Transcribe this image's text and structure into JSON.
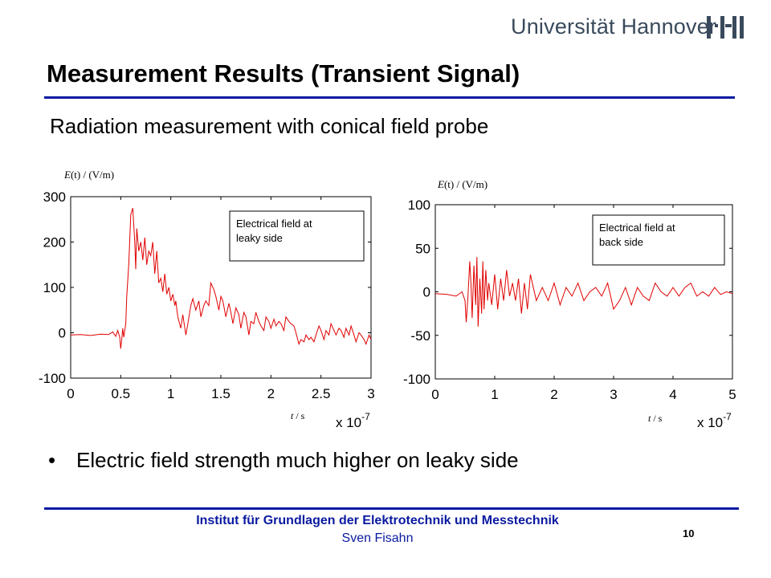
{
  "header": {
    "logo_text": "Universität Hannover",
    "logo_mark": "luh-logo-icon"
  },
  "slide": {
    "title": "Measurement Results (Transient Signal)",
    "subtitle": "Radiation measurement with conical field probe",
    "bullets": [
      {
        "marker": "•",
        "text": "Electric field strength much higher on leaky side"
      }
    ]
  },
  "footer": {
    "institute": "Institut für Grundlagen der Elektrotechnik und Messtechnik",
    "author": "Sven Fisahn",
    "page_number": "10"
  },
  "colors": {
    "rule": "#0a1aa0",
    "signal": "#e00000",
    "footer_text": "#0a1aa0"
  },
  "chart_data": [
    {
      "type": "line",
      "ylabel_var": "E",
      "ylabel_rest": "(t) / (V/m)",
      "xlabel_var": "t",
      "xlabel_rest": " / s",
      "x_multiplier_base": "x 10",
      "x_multiplier_exp": "-7",
      "xlim": [
        0,
        3
      ],
      "ylim": [
        -100,
        300
      ],
      "xticks": [
        "0",
        "0.5",
        "1",
        "1.5",
        "2",
        "2.5",
        "3"
      ],
      "xtick_values": [
        0,
        0.5,
        1,
        1.5,
        2,
        2.5,
        3
      ],
      "yticks": [
        "-100",
        "0",
        "100",
        "200",
        "300"
      ],
      "ytick_values": [
        -100,
        0,
        100,
        200,
        300
      ],
      "legend": [
        "Electrical field at",
        "leaky side"
      ],
      "color": "#e00000",
      "series": [
        {
          "x": [
            0,
            0.1,
            0.2,
            0.3,
            0.38,
            0.42,
            0.45,
            0.47,
            0.49,
            0.5,
            0.51,
            0.52,
            0.53,
            0.55,
            0.56,
            0.58,
            0.6,
            0.62,
            0.64,
            0.65,
            0.66,
            0.68,
            0.7,
            0.72,
            0.74,
            0.76,
            0.78,
            0.8,
            0.82,
            0.84,
            0.86,
            0.88,
            0.9,
            0.92,
            0.94,
            0.96,
            0.98,
            1.0,
            1.02,
            1.04,
            1.05,
            1.07,
            1.1,
            1.12,
            1.15,
            1.17,
            1.2,
            1.22,
            1.25,
            1.28,
            1.3,
            1.33,
            1.35,
            1.38,
            1.4,
            1.43,
            1.45,
            1.48,
            1.5,
            1.52,
            1.55,
            1.58,
            1.6,
            1.62,
            1.65,
            1.68,
            1.7,
            1.73,
            1.75,
            1.78,
            1.8,
            1.83,
            1.85,
            1.88,
            1.9,
            1.93,
            1.95,
            1.98,
            2.0,
            2.03,
            2.05,
            2.08,
            2.1,
            2.13,
            2.15,
            2.18,
            2.2,
            2.23,
            2.25,
            2.28,
            2.3,
            2.33,
            2.35,
            2.38,
            2.4,
            2.43,
            2.45,
            2.48,
            2.5,
            2.53,
            2.55,
            2.58,
            2.6,
            2.63,
            2.65,
            2.68,
            2.7,
            2.73,
            2.75,
            2.78,
            2.8,
            2.83,
            2.85,
            2.88,
            2.9,
            2.93,
            2.95,
            2.98,
            3.0
          ],
          "y": [
            -5,
            -4,
            -6,
            -3,
            -4,
            2,
            -8,
            5,
            -10,
            -35,
            -15,
            10,
            -10,
            20,
            80,
            150,
            260,
            275,
            200,
            140,
            230,
            180,
            200,
            160,
            210,
            150,
            180,
            170,
            200,
            130,
            180,
            110,
            120,
            90,
            130,
            85,
            100,
            70,
            85,
            60,
            70,
            35,
            10,
            40,
            -5,
            20,
            60,
            75,
            50,
            70,
            35,
            60,
            70,
            60,
            110,
            95,
            80,
            50,
            80,
            70,
            35,
            65,
            45,
            20,
            55,
            40,
            10,
            45,
            35,
            -5,
            25,
            20,
            45,
            25,
            15,
            5,
            35,
            25,
            10,
            30,
            15,
            25,
            20,
            5,
            35,
            25,
            20,
            15,
            0,
            -25,
            -15,
            -20,
            -5,
            -15,
            -10,
            -20,
            -5,
            15,
            5,
            -15,
            5,
            -5,
            20,
            5,
            -5,
            10,
            5,
            -10,
            10,
            -5,
            15,
            -5,
            -20,
            0,
            -5,
            -15,
            -25,
            -5,
            -15
          ]
        }
      ]
    },
    {
      "type": "line",
      "ylabel_var": "E",
      "ylabel_rest": "(t) / (V/m)",
      "xlabel_var": "t",
      "xlabel_rest": " / s",
      "x_multiplier_base": "x 10",
      "x_multiplier_exp": "-7",
      "xlim": [
        0,
        5
      ],
      "ylim": [
        -100,
        100
      ],
      "xticks": [
        "0",
        "1",
        "2",
        "3",
        "4",
        "5"
      ],
      "xtick_values": [
        0,
        1,
        2,
        3,
        4,
        5
      ],
      "yticks": [
        "-100",
        "-50",
        "0",
        "50",
        "100"
      ],
      "ytick_values": [
        -100,
        -50,
        0,
        50,
        100
      ],
      "legend": [
        "Electrical field at",
        "back side"
      ],
      "color": "#e00000",
      "series": [
        {
          "x": [
            0,
            0.2,
            0.35,
            0.45,
            0.5,
            0.52,
            0.55,
            0.58,
            0.6,
            0.62,
            0.65,
            0.68,
            0.7,
            0.72,
            0.75,
            0.78,
            0.8,
            0.82,
            0.85,
            0.88,
            0.9,
            0.95,
            1.0,
            1.05,
            1.1,
            1.15,
            1.2,
            1.25,
            1.3,
            1.35,
            1.4,
            1.45,
            1.5,
            1.55,
            1.6,
            1.7,
            1.8,
            1.9,
            2.0,
            2.1,
            2.2,
            2.3,
            2.4,
            2.5,
            2.6,
            2.7,
            2.8,
            2.9,
            3.0,
            3.1,
            3.2,
            3.3,
            3.4,
            3.5,
            3.6,
            3.7,
            3.8,
            3.9,
            4.0,
            4.1,
            4.2,
            4.3,
            4.4,
            4.5,
            4.6,
            4.7,
            4.8,
            4.9,
            5.0
          ],
          "y": [
            -2,
            -3,
            -5,
            0,
            -10,
            -35,
            -5,
            35,
            10,
            -30,
            30,
            -15,
            40,
            -40,
            15,
            -25,
            35,
            -20,
            25,
            -10,
            10,
            -15,
            20,
            -20,
            15,
            -10,
            25,
            -5,
            10,
            -10,
            15,
            -25,
            10,
            -20,
            20,
            -10,
            5,
            -10,
            10,
            -15,
            5,
            -5,
            10,
            -10,
            0,
            5,
            -5,
            10,
            -20,
            -10,
            5,
            -15,
            5,
            -5,
            -10,
            10,
            0,
            -5,
            5,
            -5,
            5,
            10,
            -5,
            0,
            -5,
            5,
            -3,
            0,
            -2
          ]
        }
      ]
    }
  ]
}
